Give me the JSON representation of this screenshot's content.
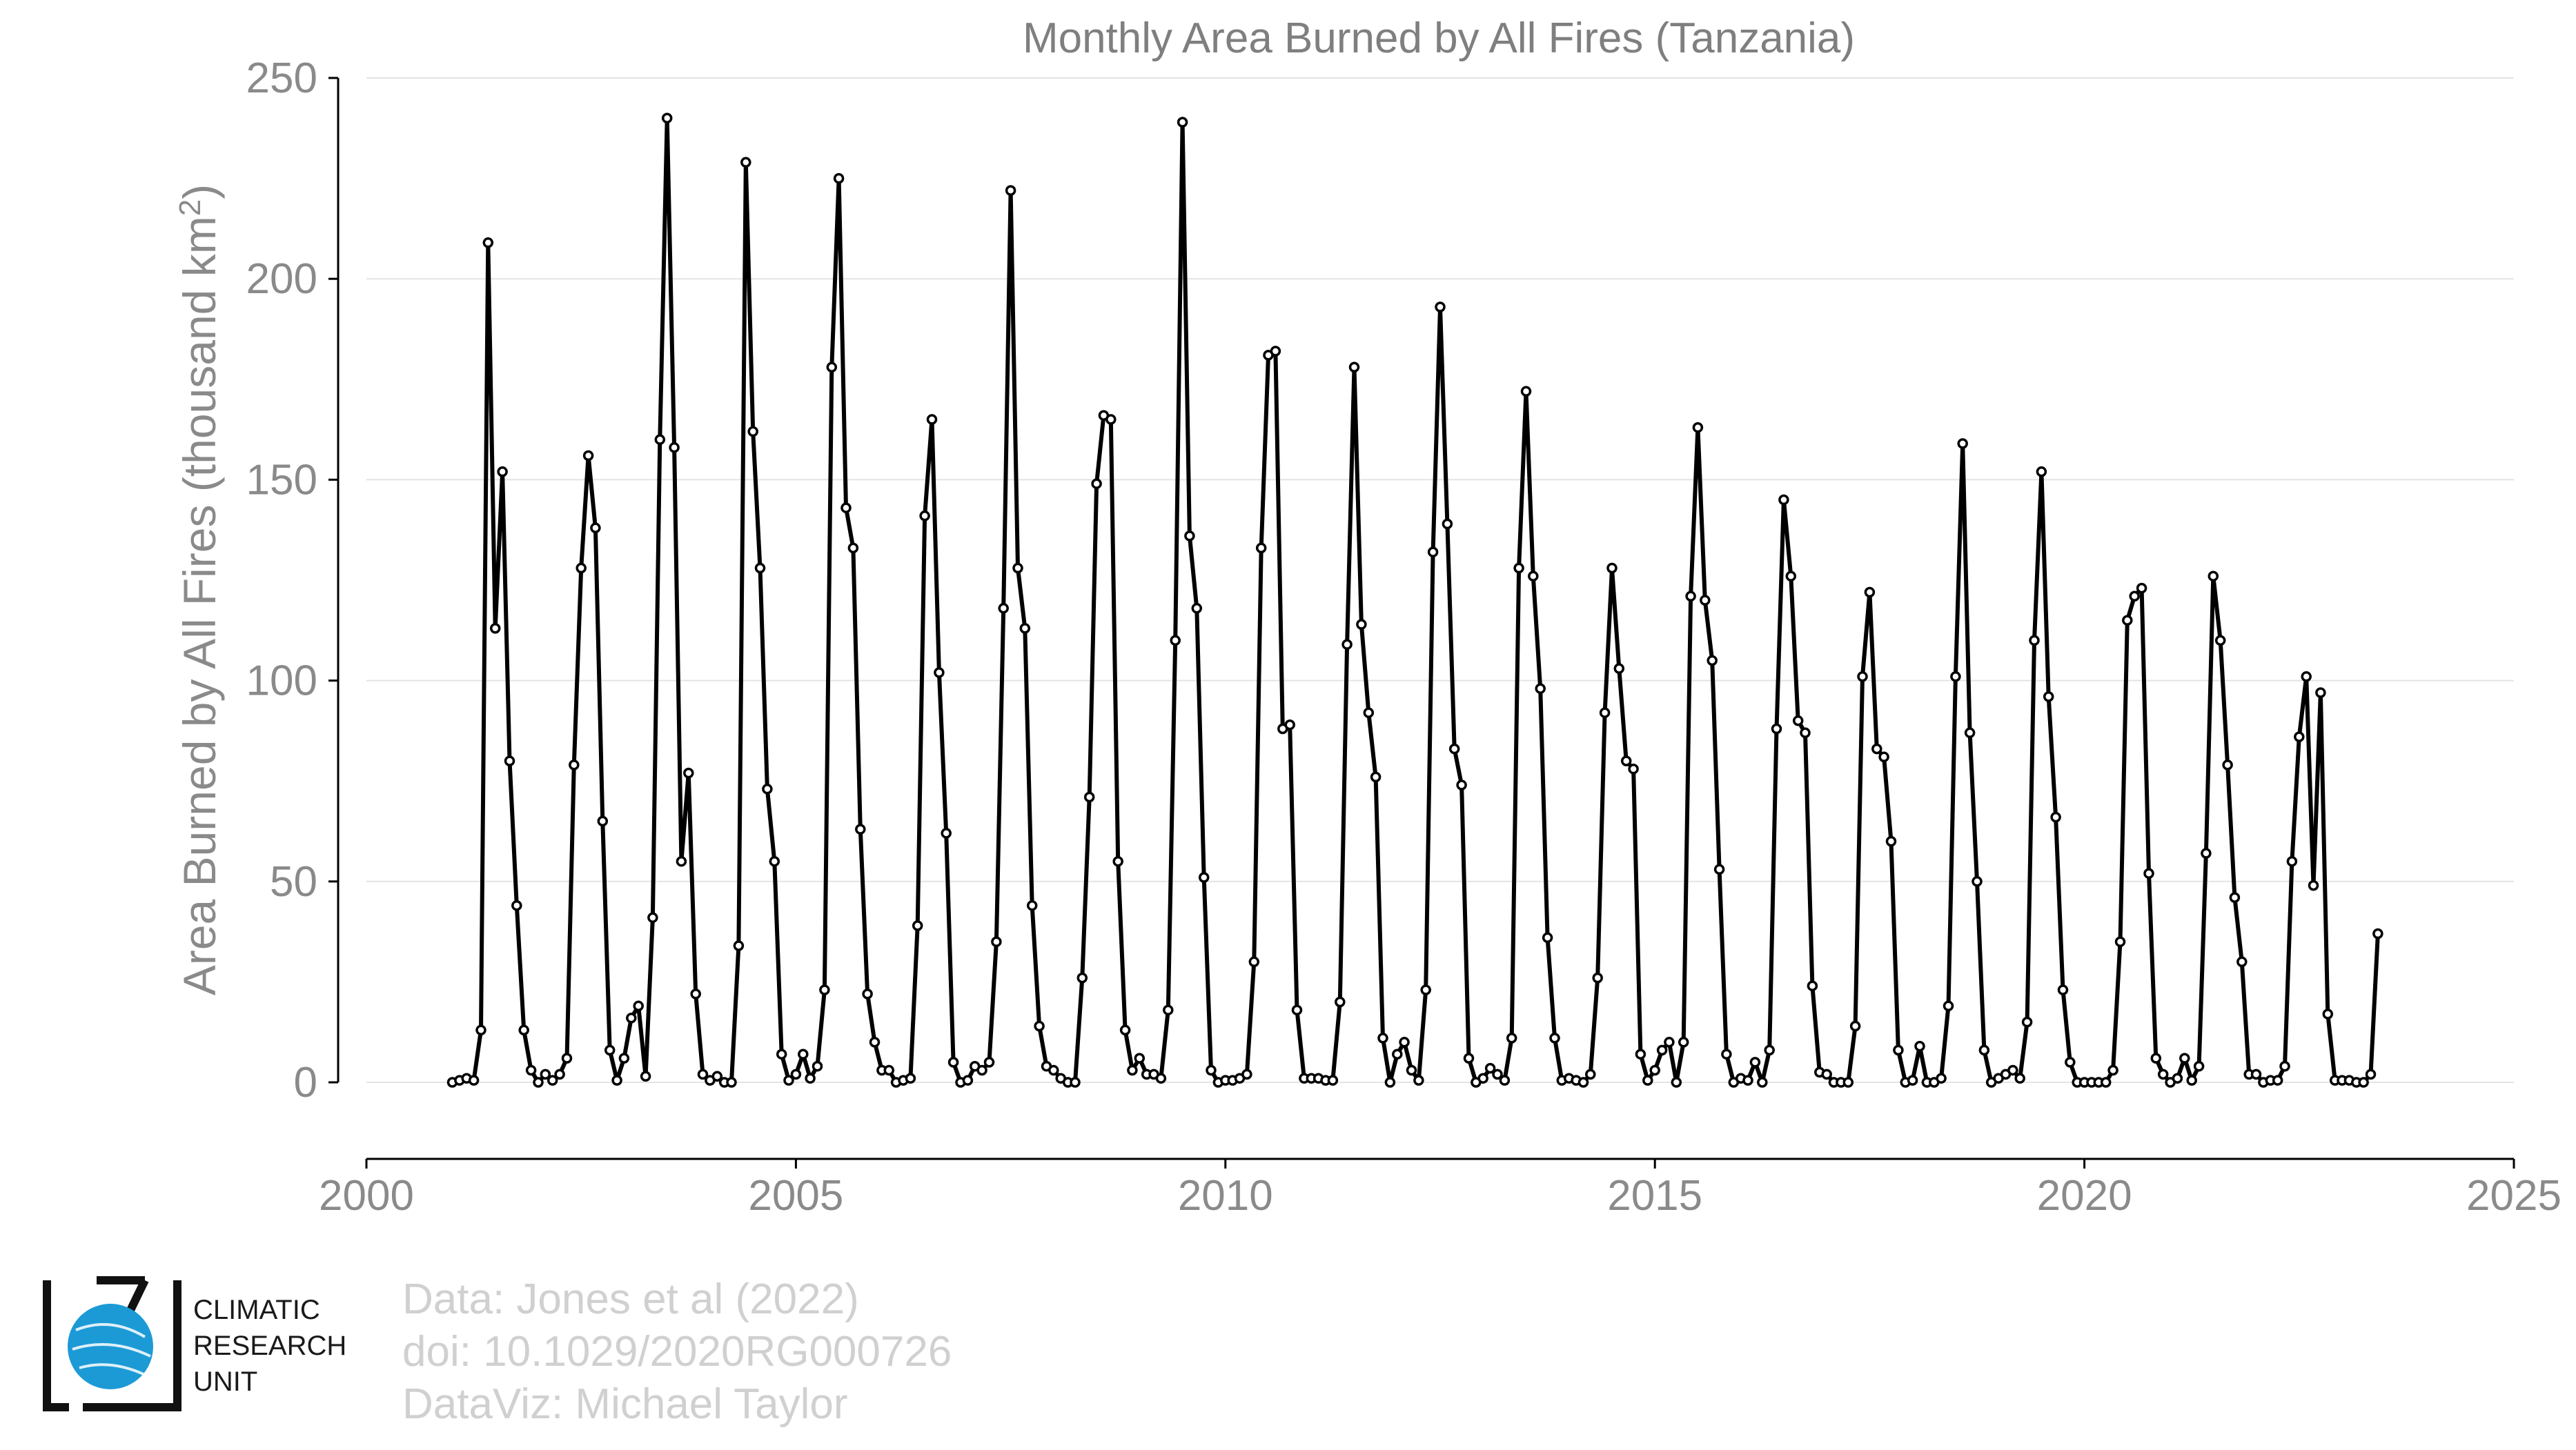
{
  "chart_data": {
    "type": "line",
    "title": "Monthly Area Burned by All Fires (Tanzania)",
    "ylabel_main": "Area Burned by All Fires (thousand km",
    "ylabel_sup": "2",
    "ylabel_close": ")",
    "xlabel": "",
    "xlim": [
      2000,
      2025
    ],
    "ylim": [
      -18,
      250
    ],
    "xticks": [
      "2000",
      "2005",
      "2010",
      "2015",
      "2020",
      "2025"
    ],
    "yticks": [
      "0",
      "50",
      "100",
      "150",
      "200",
      "250"
    ],
    "grid": "horizontal",
    "line_color": "#000000",
    "start": 2001.0,
    "step": 0.083333,
    "series": [
      {
        "values": [
          0,
          0.5,
          1,
          0.5,
          13,
          209,
          113,
          152,
          80,
          44,
          13,
          3,
          0,
          2,
          0.5,
          2,
          6,
          79,
          128,
          156,
          138,
          65,
          8,
          0.5,
          6,
          16,
          19,
          1.5,
          41,
          160,
          240,
          158,
          55,
          77,
          22,
          2,
          0.5,
          1.5,
          0,
          0,
          34,
          229,
          162,
          128,
          73,
          55,
          7,
          0.5,
          2,
          7,
          1,
          4,
          23,
          178,
          225,
          143,
          133,
          63,
          22,
          10,
          3,
          3,
          0,
          0.5,
          1,
          39,
          141,
          165,
          102,
          62,
          5,
          0,
          0.5,
          4,
          3,
          5,
          35,
          118,
          222,
          128,
          113,
          44,
          14,
          4,
          3,
          1,
          0,
          0,
          26,
          71,
          149,
          166,
          165,
          55,
          13,
          3,
          6,
          2,
          2,
          1,
          18,
          110,
          239,
          136,
          118,
          51,
          3,
          0,
          0.5,
          0.5,
          1,
          2,
          30,
          133,
          181,
          182,
          88,
          89,
          18,
          1,
          1,
          1,
          0.5,
          0.5,
          20,
          109,
          178,
          114,
          92,
          76,
          11,
          0,
          7,
          10,
          3,
          0.5,
          23,
          132,
          193,
          139,
          83,
          74,
          6,
          0,
          1,
          3.5,
          2,
          0.5,
          11,
          128,
          172,
          126,
          98,
          36,
          11,
          0.5,
          1,
          0.5,
          0,
          2,
          26,
          92,
          128,
          103,
          80,
          78,
          7,
          0.5,
          3,
          8,
          10,
          0,
          10,
          121,
          163,
          120,
          105,
          53,
          7,
          0,
          1,
          0.5,
          5,
          0,
          8,
          88,
          145,
          126,
          90,
          87,
          24,
          2.5,
          2,
          0,
          0,
          0,
          14,
          101,
          122,
          83,
          81,
          60,
          8,
          0,
          0.5,
          9,
          0,
          0,
          1,
          19,
          101,
          159,
          87,
          50,
          8,
          0,
          1,
          2,
          3,
          1,
          15,
          110,
          152,
          96,
          66,
          23,
          5,
          0,
          0,
          0,
          0,
          0,
          3,
          35,
          115,
          121,
          123,
          52,
          6,
          2,
          0,
          1,
          6,
          0.5,
          4,
          57,
          126,
          110,
          79,
          46,
          30,
          2,
          2,
          0,
          0.5,
          0.5,
          4,
          55,
          86,
          101,
          49,
          97,
          17,
          0.5,
          0.5,
          0.5,
          0,
          0,
          2,
          37
        ]
      }
    ]
  },
  "credits": {
    "line1": "Data: Jones et al (2022)",
    "line2": "doi: 10.1029/2020RG000726",
    "line3": "DataViz: Michael Taylor"
  },
  "logo": {
    "line1": "CLIMATIC",
    "line2": "RESEARCH",
    "line3": "UNIT",
    "color": "#1c9ad6"
  }
}
